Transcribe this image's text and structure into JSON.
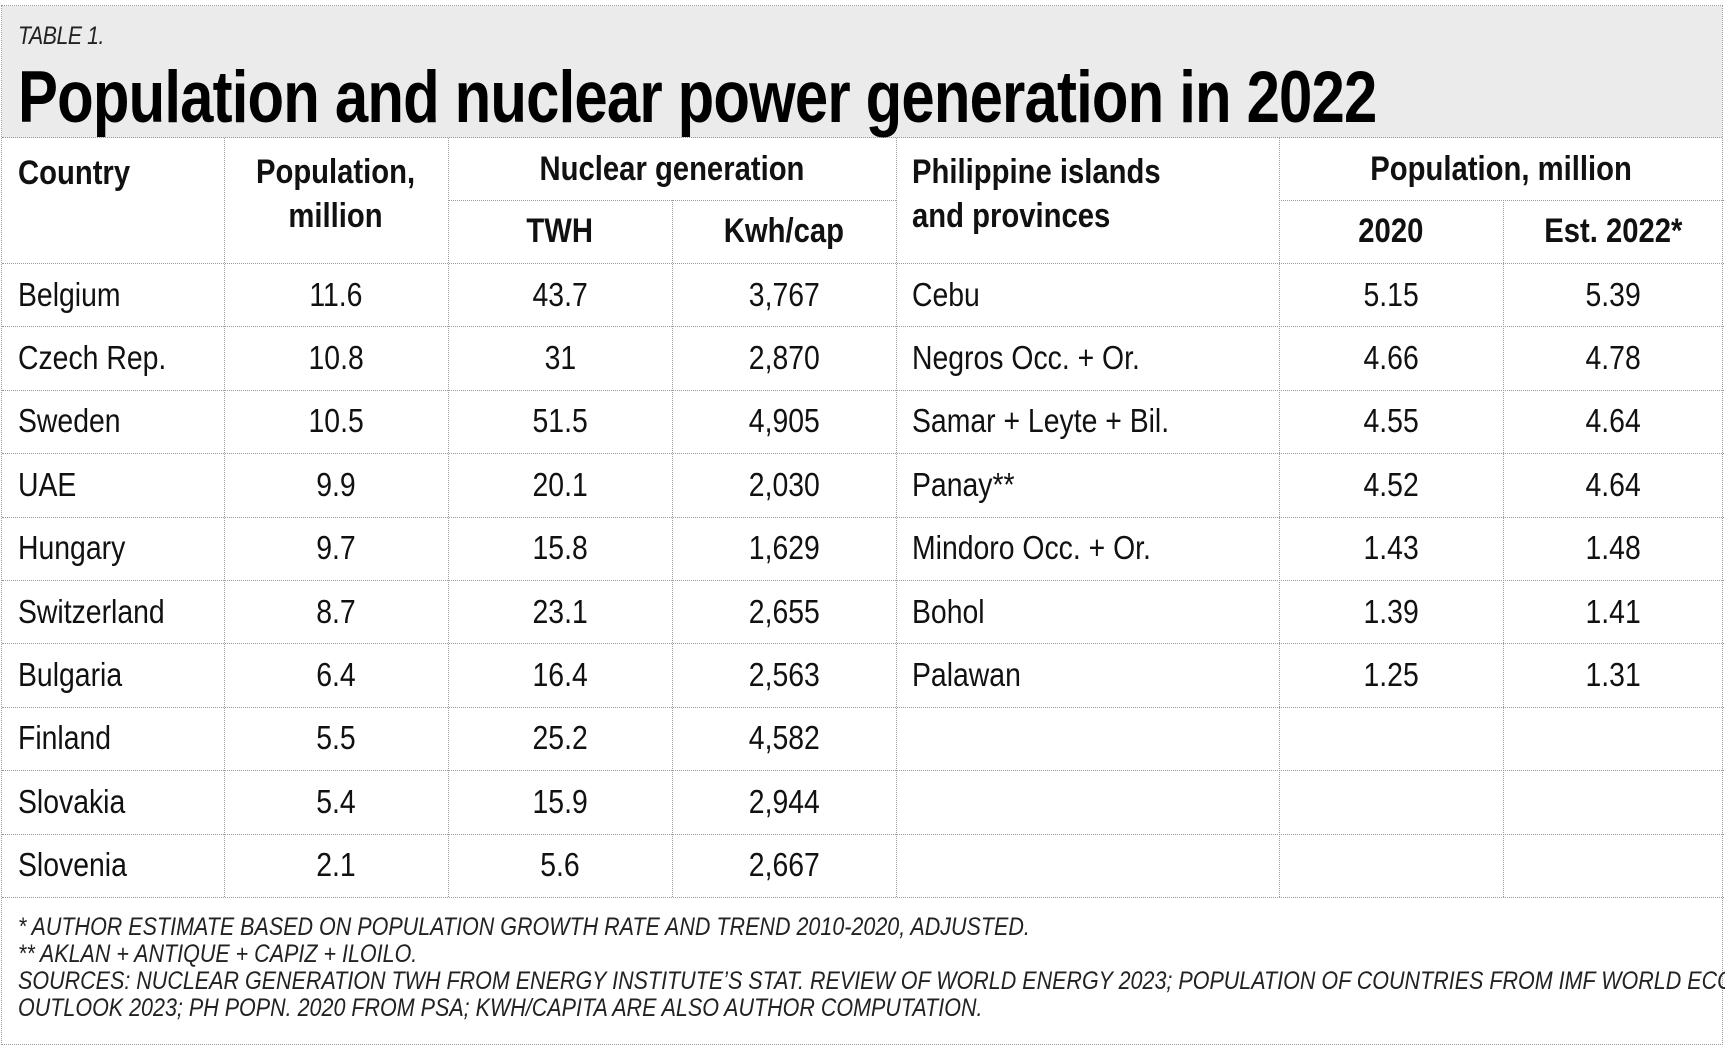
{
  "kicker": "TABLE 1.",
  "title": "Population and nuclear power generation in 2022",
  "left_table": {
    "headers": {
      "country": "Country",
      "population_l1": "Population,",
      "population_l2": "million",
      "nuclear_group": "Nuclear generation",
      "twh": "TWH",
      "kwh": "Kwh/cap"
    },
    "rows": [
      {
        "country": "Belgium",
        "population": "11.6",
        "twh": "43.7",
        "kwh": "3,767"
      },
      {
        "country": "Czech Rep.",
        "population": "10.8",
        "twh": "31",
        "kwh": "2,870"
      },
      {
        "country": "Sweden",
        "population": "10.5",
        "twh": "51.5",
        "kwh": "4,905"
      },
      {
        "country": "UAE",
        "population": "9.9",
        "twh": "20.1",
        "kwh": "2,030"
      },
      {
        "country": "Hungary",
        "population": "9.7",
        "twh": "15.8",
        "kwh": "1,629"
      },
      {
        "country": "Switzerland",
        "population": "8.7",
        "twh": "23.1",
        "kwh": "2,655"
      },
      {
        "country": "Bulgaria",
        "population": "6.4",
        "twh": "16.4",
        "kwh": "2,563"
      },
      {
        "country": "Finland",
        "population": "5.5",
        "twh": "25.2",
        "kwh": "4,582"
      },
      {
        "country": "Slovakia",
        "population": "5.4",
        "twh": "15.9",
        "kwh": "2,944"
      },
      {
        "country": "Slovenia",
        "population": "2.1",
        "twh": "5.6",
        "kwh": "2,667"
      }
    ]
  },
  "right_table": {
    "headers": {
      "islands_l1": "Philippine islands",
      "islands_l2": "and provinces",
      "population_group": "Population, million",
      "y2020": "2020",
      "y2022": "Est. 2022*"
    },
    "rows": [
      {
        "name": "Cebu",
        "y2020": "5.15",
        "y2022": "5.39"
      },
      {
        "name": "Negros Occ. + Or.",
        "y2020": "4.66",
        "y2022": "4.78"
      },
      {
        "name": "Samar + Leyte + Bil.",
        "y2020": "4.55",
        "y2022": "4.64"
      },
      {
        "name": "Panay**",
        "y2020": "4.52",
        "y2022": "4.64"
      },
      {
        "name": "Mindoro Occ. + Or.",
        "y2020": "1.43",
        "y2022": "1.48"
      },
      {
        "name": "Bohol",
        "y2020": "1.39",
        "y2022": "1.41"
      },
      {
        "name": "Palawan",
        "y2020": "1.25",
        "y2022": "1.31"
      }
    ]
  },
  "notes": [
    "* AUTHOR ESTIMATE BASED ON POPULATION GROWTH RATE AND TREND 2010-2020, ADJUSTED.",
    "** AKLAN + ANTIQUE + CAPIZ + ILOILO.",
    "SOURCES: NUCLEAR GENERATION TWH FROM ENERGY INSTITUTE’S STAT. REVIEW OF WORLD ENERGY 2023; POPULATION OF COUNTRIES FROM IMF WORLD ECON.",
    "OUTLOOK 2023; PH POPN. 2020 FROM PSA; KWH/CAPITA ARE ALSO AUTHOR COMPUTATION."
  ]
}
